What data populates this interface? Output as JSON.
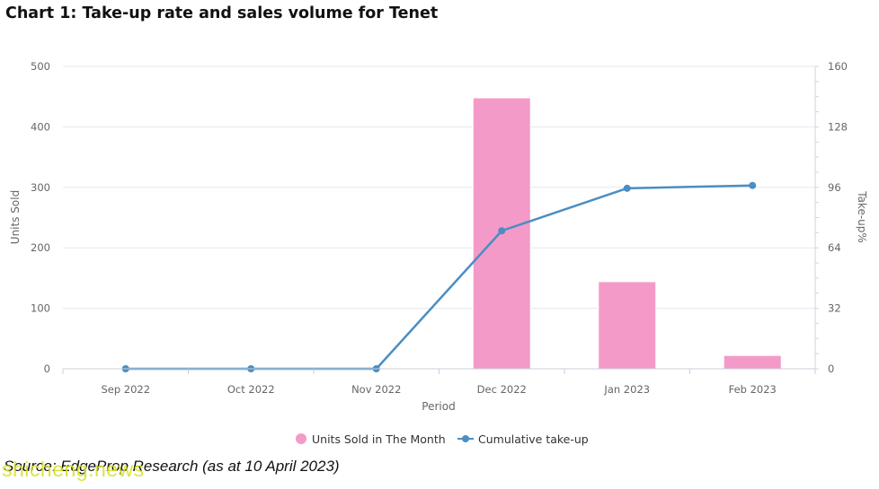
{
  "title": "Chart 1: Take-up rate and sales volume for Tenet",
  "source": "Source: EdgeProp Research (as at 10 April 2023)",
  "watermark": "shicheng.news",
  "colors": {
    "bar": "#f49ac8",
    "line": "#4a8ec3",
    "grid": "#e3e8ef",
    "axis_text": "#666666"
  },
  "chart_data": {
    "type": "bar+line",
    "categories": [
      "Sep 2022",
      "Oct 2022",
      "Nov 2022",
      "Dec 2022",
      "Jan 2023",
      "Feb 2023"
    ],
    "series": [
      {
        "name": "Units Sold in The Month",
        "type": "bar",
        "axis": "left",
        "values": [
          0,
          0,
          0,
          448,
          144,
          22
        ]
      },
      {
        "name": "Cumulative take-up",
        "type": "line",
        "axis": "right",
        "values": [
          0,
          0,
          0,
          73,
          95.5,
          97
        ]
      }
    ],
    "xlabel": "Period",
    "ylabel_left": "Units Sold",
    "ylabel_right": "Take-up%",
    "ylim_left": [
      0,
      500
    ],
    "ylim_right": [
      0,
      160
    ],
    "yticks_left": [
      "0",
      "100",
      "200",
      "300",
      "400",
      "500"
    ],
    "yticks_right": [
      "0",
      "32",
      "64",
      "96",
      "128",
      "160"
    ],
    "grid": true,
    "legend_position": "bottom"
  }
}
